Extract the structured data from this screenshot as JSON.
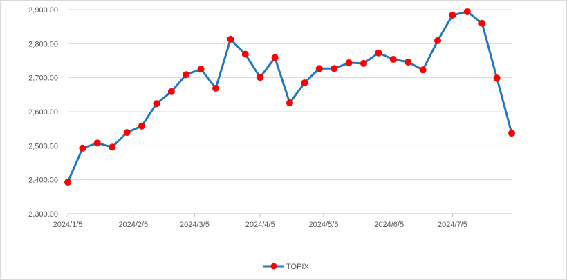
{
  "chart_data": {
    "type": "line",
    "title": "",
    "xlabel": "",
    "ylabel": "",
    "ylim": [
      2300,
      2900
    ],
    "yticks": [
      2300,
      2400,
      2500,
      2600,
      2700,
      2800,
      2900
    ],
    "ytick_labels": [
      "2,300.00",
      "2,400.00",
      "2,500.00",
      "2,600.00",
      "2,700.00",
      "2,800.00",
      "2,900.00"
    ],
    "xlim": [
      "2024-01-05",
      "2024-08-02"
    ],
    "xtick_labels": [
      {
        "date": "2024-01-05",
        "label": "2024/1/5"
      },
      {
        "date": "2024-02-05",
        "label": "2024/2/5"
      },
      {
        "date": "2024-03-05",
        "label": "2024/3/5"
      },
      {
        "date": "2024-04-05",
        "label": "2024/4/5"
      },
      {
        "date": "2024-05-05",
        "label": "2024/5/5"
      },
      {
        "date": "2024-06-05",
        "label": "2024/6/5"
      },
      {
        "date": "2024-07-05",
        "label": "2024/7/5"
      }
    ],
    "grid": true,
    "legend": "bottom",
    "series": [
      {
        "name": "TOPIX",
        "line_color": "#1f77c4",
        "marker_color": "#ff0000",
        "x": [
          "2024-01-05",
          "2024-01-12",
          "2024-01-19",
          "2024-01-26",
          "2024-02-02",
          "2024-02-09",
          "2024-02-16",
          "2024-02-23",
          "2024-03-01",
          "2024-03-08",
          "2024-03-15",
          "2024-03-22",
          "2024-03-29",
          "2024-04-05",
          "2024-04-12",
          "2024-04-19",
          "2024-04-26",
          "2024-05-03",
          "2024-05-10",
          "2024-05-17",
          "2024-05-24",
          "2024-05-31",
          "2024-06-07",
          "2024-06-14",
          "2024-06-21",
          "2024-06-28",
          "2024-07-05",
          "2024-07-12",
          "2024-07-19",
          "2024-07-26",
          "2024-08-02"
        ],
        "values": [
          2393,
          2493,
          2508,
          2496,
          2539,
          2558,
          2624,
          2659,
          2709,
          2725,
          2669,
          2813,
          2769,
          2701,
          2759,
          2626,
          2685,
          2727,
          2727,
          2744,
          2742,
          2773,
          2754,
          2746,
          2723,
          2809,
          2884,
          2894,
          2860,
          2699,
          2537
        ]
      }
    ]
  }
}
